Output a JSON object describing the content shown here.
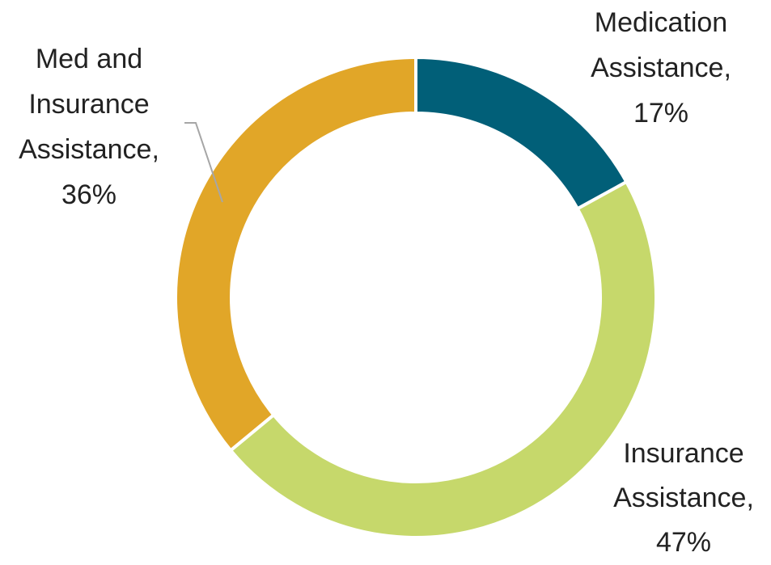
{
  "chart_data": {
    "type": "donut",
    "categories": [
      "Medication Assistance,",
      "Insurance Assistance,",
      "Med and Insurance Assistance,"
    ],
    "values": [
      17,
      47,
      36
    ],
    "value_labels": [
      "17%",
      "47%",
      "36%"
    ],
    "colors": [
      "#015f78",
      "#c6d86b",
      "#e1a628"
    ]
  }
}
